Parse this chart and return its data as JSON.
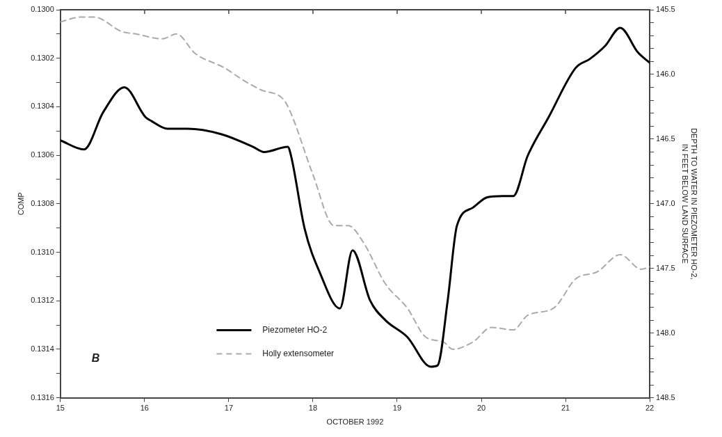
{
  "chart_data": {
    "type": "line",
    "xlabel": "OCTOBER 1992",
    "ylabel": "COMP",
    "y2label": "DEPTH TO WATER IN PIEZOMETER HO-2,\nIN FEET BELOW LAND SURFACE",
    "annotations": [
      "B"
    ],
    "xlim": [
      15,
      22
    ],
    "xticks": [
      15,
      16,
      17,
      18,
      19,
      20,
      21,
      22
    ],
    "ylim": [
      0.1316,
      0.13
    ],
    "yticks": [
      {
        "value": 0.13,
        "label": "0.1300"
      },
      {
        "value": 0.1301,
        "label": null
      },
      {
        "value": 0.1302,
        "label": "0.1302"
      },
      {
        "value": 0.1303,
        "label": null
      },
      {
        "value": 0.1304,
        "label": "0.1304"
      },
      {
        "value": 0.1305,
        "label": null
      },
      {
        "value": 0.1306,
        "label": "0.1306"
      },
      {
        "value": 0.1307,
        "label": null
      },
      {
        "value": 0.1308,
        "label": "0.1308"
      },
      {
        "value": 0.1309,
        "label": null
      },
      {
        "value": 0.131,
        "label": "0.1310"
      },
      {
        "value": 0.1311,
        "label": null
      },
      {
        "value": 0.1312,
        "label": "0.1312"
      },
      {
        "value": 0.1313,
        "label": null
      },
      {
        "value": 0.1314,
        "label": "0.1314"
      },
      {
        "value": 0.1315,
        "label": null
      },
      {
        "value": 0.1316,
        "label": "0.1316"
      }
    ],
    "y2lim": [
      148.5,
      145.5
    ],
    "y2ticks": [
      145.5,
      {
        "value": 145.6,
        "label": null
      },
      {
        "value": 145.7,
        "label": null
      },
      {
        "value": 145.8,
        "label": null
      },
      {
        "value": 145.9,
        "label": null
      },
      {
        "value": 146.0,
        "label": "146.0"
      },
      {
        "value": 146.1,
        "label": null
      },
      {
        "value": 146.2,
        "label": null
      },
      {
        "value": 146.3,
        "label": null
      },
      {
        "value": 146.4,
        "label": null
      },
      146.5,
      {
        "value": 146.6,
        "label": null
      },
      {
        "value": 146.7,
        "label": null
      },
      {
        "value": 146.8,
        "label": null
      },
      {
        "value": 146.9,
        "label": null
      },
      {
        "value": 147.0,
        "label": "147.0"
      },
      {
        "value": 147.1,
        "label": null
      },
      {
        "value": 147.2,
        "label": null
      },
      {
        "value": 147.3,
        "label": null
      },
      {
        "value": 147.4,
        "label": null
      },
      147.5,
      {
        "value": 147.6,
        "label": null
      },
      {
        "value": 147.7,
        "label": null
      },
      {
        "value": 147.8,
        "label": null
      },
      {
        "value": 147.9,
        "label": null
      },
      {
        "value": 148.0,
        "label": "148.0"
      },
      {
        "value": 148.1,
        "label": null
      },
      {
        "value": 148.2,
        "label": null
      },
      {
        "value": 148.3,
        "label": null
      },
      {
        "value": 148.4,
        "label": null
      },
      148.5
    ],
    "legend": "bottom",
    "marker": "none",
    "series": [
      {
        "name": "Piezometer HO-2",
        "color": "#000000",
        "axis": "y2",
        "line_style": "solid",
        "x": [
          15,
          15.28,
          15.51,
          15.76,
          16.01,
          16.08,
          16.27,
          16.51,
          16.9,
          17.29,
          17.42,
          17.7,
          17.74,
          17.9,
          18.08,
          18.32,
          18.47,
          18.68,
          18.86,
          19.12,
          19.4,
          19.48,
          19.6,
          19.71,
          19.9,
          20.07,
          20.25,
          20.38,
          20.55,
          20.8,
          21.12,
          21.29,
          21.47,
          21.65,
          21.86,
          22
        ],
        "values": [
          146.51,
          146.58,
          146.29,
          146.1,
          146.33,
          146.36,
          146.42,
          146.42,
          146.46,
          146.56,
          146.6,
          146.56,
          146.63,
          147.19,
          147.53,
          147.81,
          147.36,
          147.75,
          147.9,
          148.03,
          148.26,
          148.25,
          147.75,
          147.17,
          147.03,
          146.95,
          146.94,
          146.94,
          146.63,
          146.33,
          145.95,
          145.88,
          145.78,
          145.64,
          145.83,
          145.91
        ]
      },
      {
        "name": "Holly extensometer",
        "color": "#aaaaaa",
        "axis": "y",
        "line_style": "dashed",
        "x": [
          15,
          15.25,
          15.4,
          15.73,
          15.9,
          16.21,
          16.38,
          16.6,
          16.95,
          17.17,
          17.38,
          17.65,
          17.73,
          18,
          18.25,
          18.42,
          18.6,
          18.86,
          19.12,
          19.34,
          19.55,
          19.66,
          19.9,
          20.12,
          20.38,
          20.55,
          20.86,
          21.12,
          21.38,
          21.65,
          21.9,
          22
        ],
        "values": [
          0.13005,
          0.13003,
          0.13003,
          0.13009,
          0.1301,
          0.13012,
          0.1301,
          0.13018,
          0.13024,
          0.13029,
          0.13033,
          0.13037,
          0.13042,
          0.13068,
          0.13089,
          0.13089,
          0.13096,
          0.13113,
          0.13123,
          0.13135,
          0.13137,
          0.1314,
          0.13137,
          0.13131,
          0.13132,
          0.13126,
          0.13123,
          0.13111,
          0.13108,
          0.13101,
          0.13107,
          0.13106
        ]
      }
    ]
  }
}
